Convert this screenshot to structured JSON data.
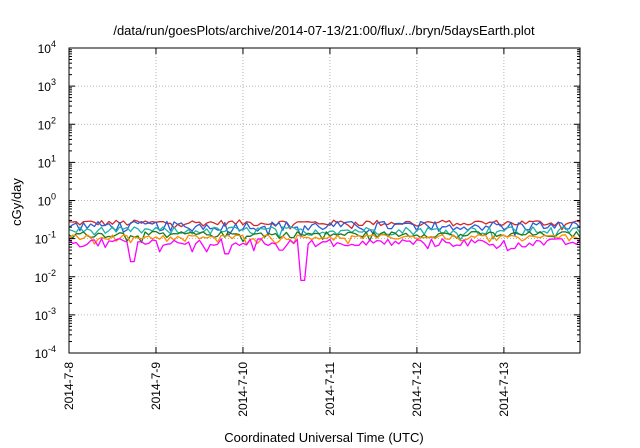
{
  "chart_data": {
    "type": "line",
    "title": "/data/run/goesPlots/archive/2014-07-13/21:00/flux/../bryn/5daysEarth.plot",
    "xlabel": "Coordinated Universal Time (UTC)",
    "ylabel": "cGy/day",
    "yscale": "log",
    "ylim": [
      0.0001,
      10000
    ],
    "xlim": [
      "2014-07-08 00:00",
      "2014-07-13 21:00"
    ],
    "y_ticks": [
      {
        "value": 0.0001,
        "base": "10",
        "exp": "-4"
      },
      {
        "value": 0.001,
        "base": "10",
        "exp": "-3"
      },
      {
        "value": 0.01,
        "base": "10",
        "exp": "-2"
      },
      {
        "value": 0.1,
        "base": "10",
        "exp": "-1"
      },
      {
        "value": 1,
        "base": "10",
        "exp": "0"
      },
      {
        "value": 10,
        "base": "10",
        "exp": "1"
      },
      {
        "value": 100,
        "base": "10",
        "exp": "2"
      },
      {
        "value": 1000,
        "base": "10",
        "exp": "3"
      },
      {
        "value": 10000,
        "base": "10",
        "exp": "4"
      }
    ],
    "x_ticks": [
      {
        "value": "2014-07-08",
        "label": "2014-7-8"
      },
      {
        "value": "2014-07-09",
        "label": "2014-7-9"
      },
      {
        "value": "2014-07-10",
        "label": "2014-7-10"
      },
      {
        "value": "2014-07-11",
        "label": "2014-7-11"
      },
      {
        "value": "2014-07-12",
        "label": "2014-7-12"
      },
      {
        "value": "2014-07-13",
        "label": "2014-7-13"
      }
    ],
    "grid": true,
    "series": [
      {
        "color": "#d62728",
        "base": 0.26,
        "amp": 0.06,
        "dips": []
      },
      {
        "color": "#2a5bd7",
        "base": 0.22,
        "amp": 0.08,
        "dips": [
          [
            "2014-07-09 20:00",
            0.12
          ],
          [
            "2014-07-10 16:00",
            0.11
          ],
          [
            "2014-07-13 03:00",
            0.12
          ]
        ]
      },
      {
        "color": "#20b2aa",
        "base": 0.165,
        "amp": 0.05,
        "dips": []
      },
      {
        "color": "#1a7a1a",
        "base": 0.13,
        "amp": 0.03,
        "dips": []
      },
      {
        "color": "#ff8c00",
        "base": 0.11,
        "amp": 0.02,
        "dips": []
      },
      {
        "color": "#ff00ff",
        "base": 0.08,
        "amp": 0.025,
        "dips": [
          [
            "2014-07-08 17:30",
            0.025
          ],
          [
            "2014-07-09 10:00",
            0.045
          ],
          [
            "2014-07-09 14:00",
            0.045
          ],
          [
            "2014-07-09 19:30",
            0.04
          ],
          [
            "2014-07-10 10:30",
            0.05
          ],
          [
            "2014-07-10 16:30",
            0.008
          ],
          [
            "2014-07-13 02:30",
            0.055
          ]
        ]
      }
    ]
  }
}
